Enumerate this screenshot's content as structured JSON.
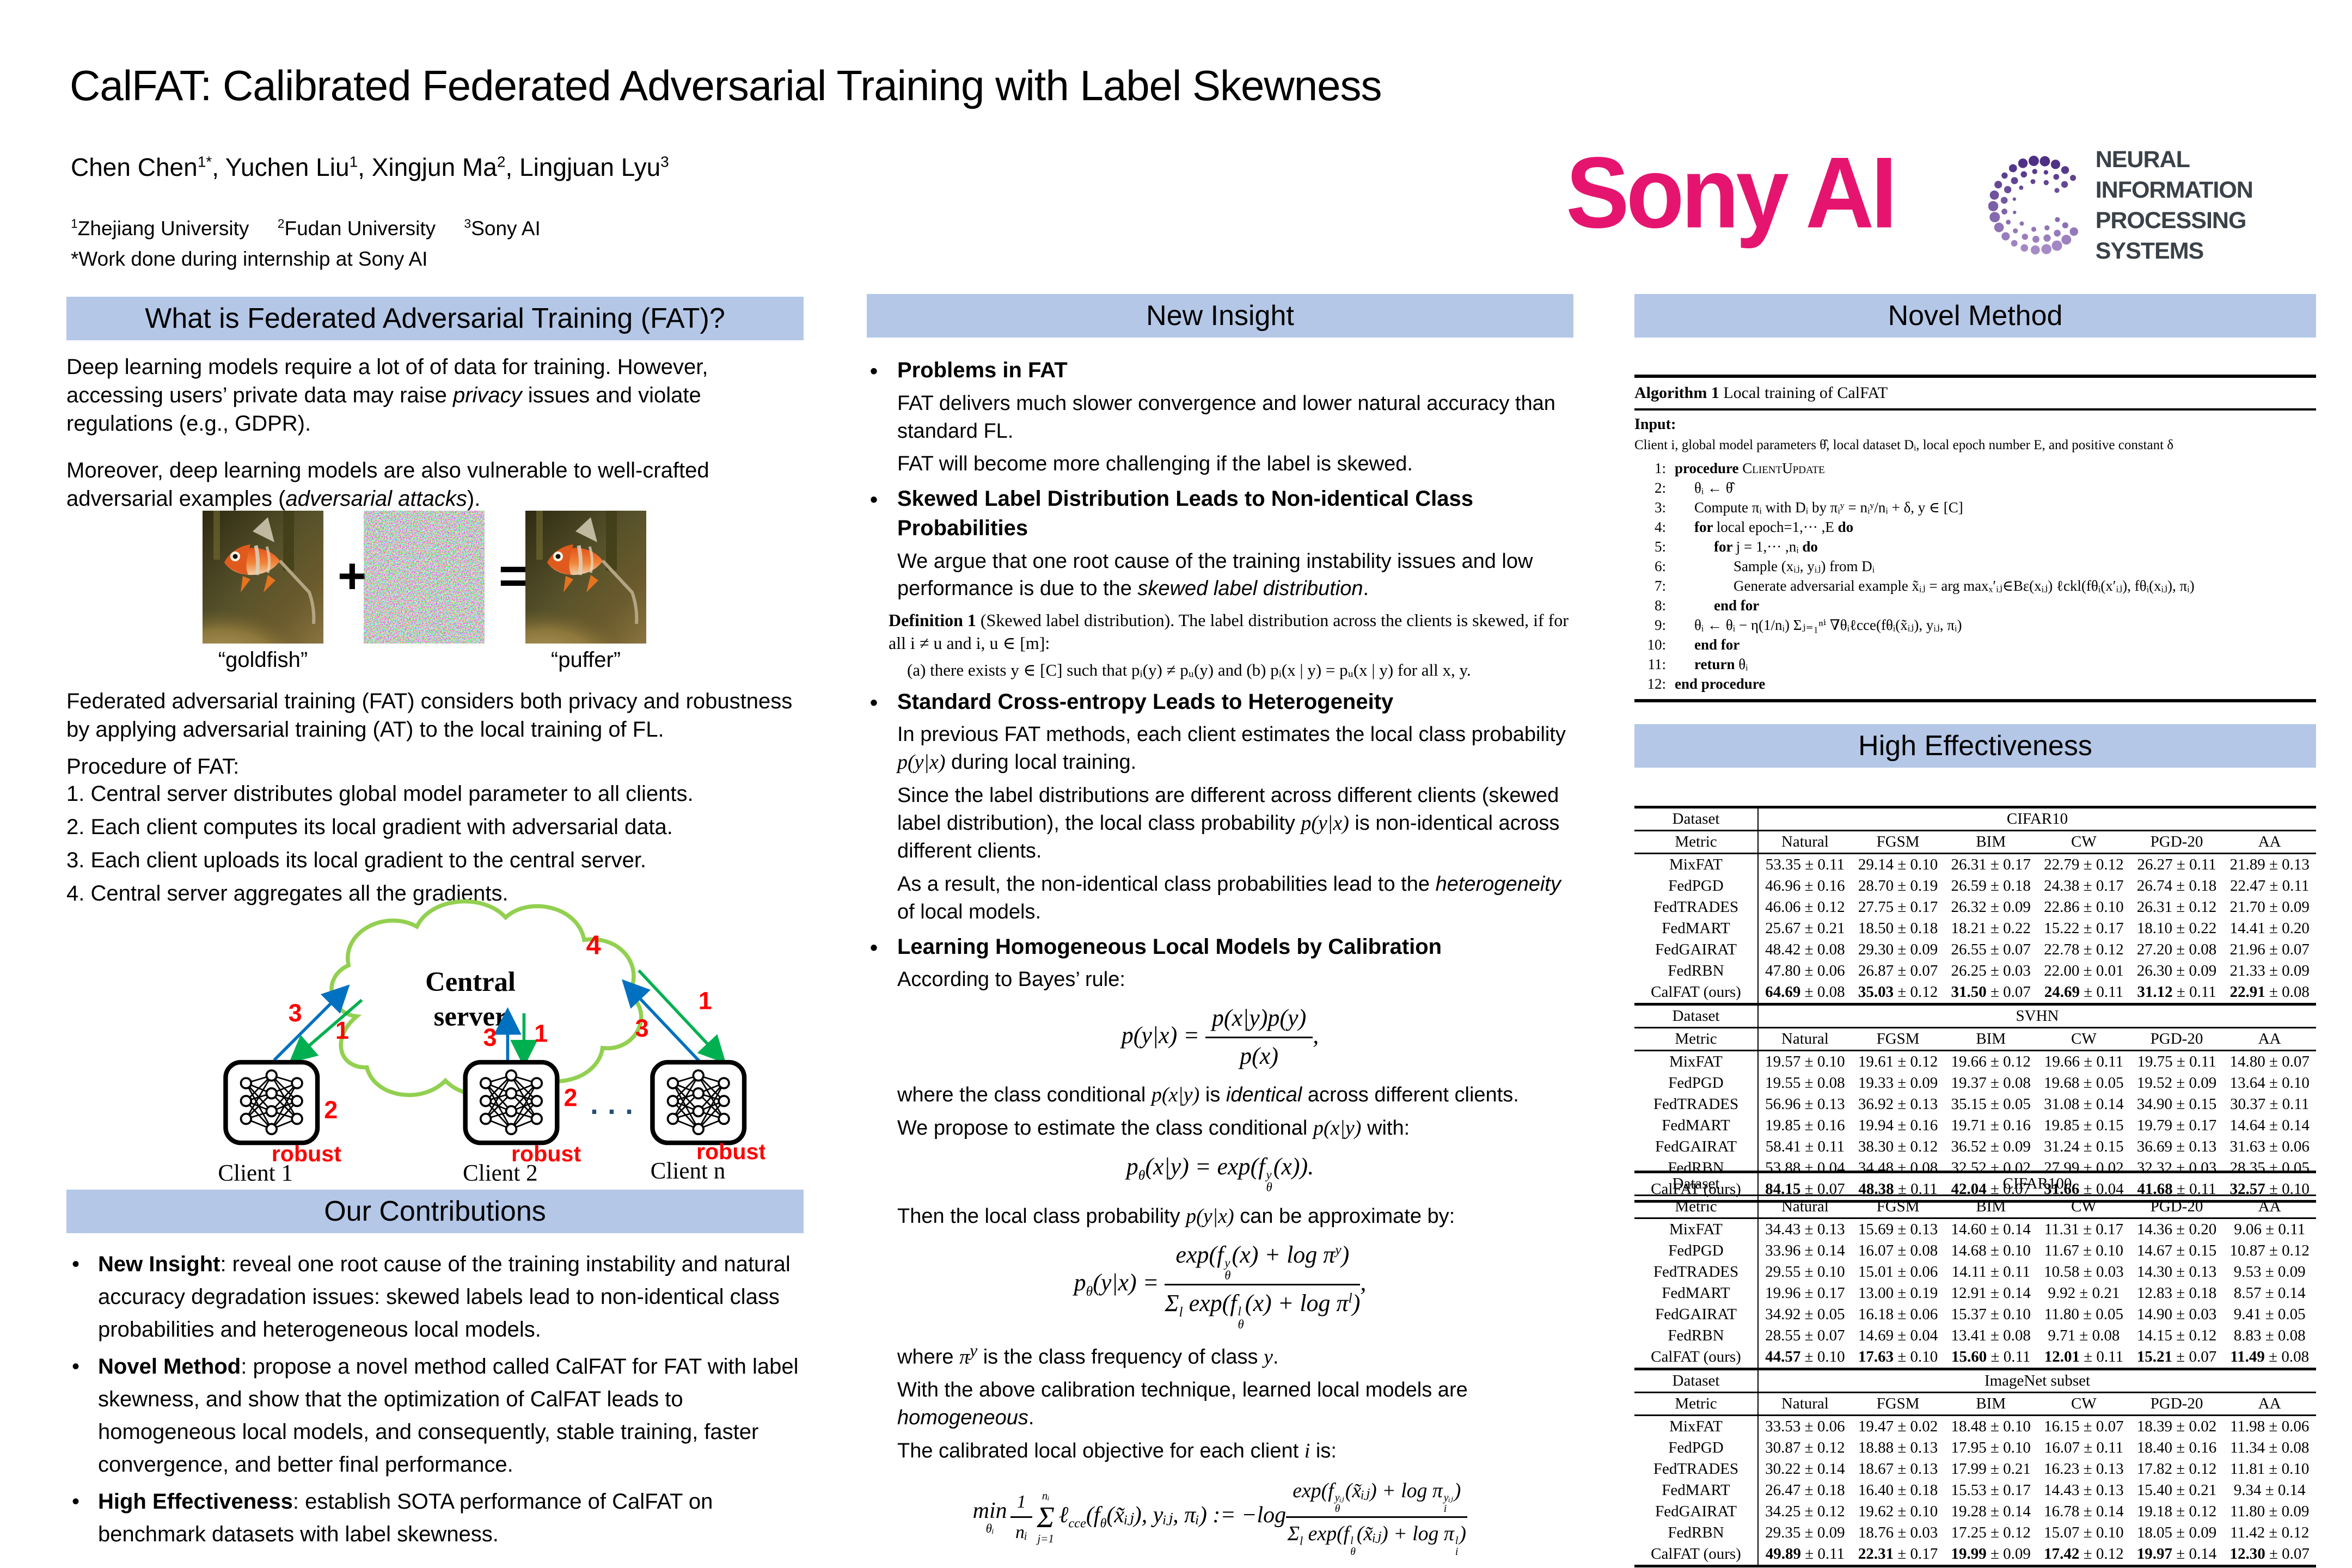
{
  "header": {
    "title": "CalFAT: Calibrated Federated Adversarial Training with Label Skewness",
    "authors": [
      {
        "name": "Chen Chen",
        "sup": "1*"
      },
      {
        "name": ", Yuchen Liu",
        "sup": "1"
      },
      {
        "name": ", Xingjun Ma",
        "sup": "2"
      },
      {
        "name": ", Lingjuan Lyu",
        "sup": "3"
      }
    ],
    "affiliations": [
      {
        "sup": "1",
        "text": "Zhejiang University"
      },
      {
        "sup": "2",
        "text": "Fudan University"
      },
      {
        "sup": "3",
        "text": "Sony AI"
      }
    ],
    "note": "*Work done during internship at Sony AI",
    "sony_logo": "Sony AI",
    "neurips_logo_line1": "NEURAL INFORMATION",
    "neurips_logo_line2": "PROCESSING SYSTEMS"
  },
  "col1": {
    "header": "What is Federated Adversarial Training (FAT)?",
    "p1a": "Deep learning models require a lot of of data for training. However, accessing users’ private data may raise ",
    "p1em": "privacy",
    "p1b": " issues and violate regulations (e.g., GDPR).",
    "p2a": "Moreover, deep learning models are also vulnerable to well-crafted adversarial examples (",
    "p2em": "adversarial attacks",
    "p2b": ").",
    "plus": "+",
    "equals": "=",
    "cap_goldfish": "“goldfish”",
    "cap_puffer": "“puffer”",
    "p3": "Federated adversarial training (FAT) considers both privacy and robustness by applying adversarial training (AT) to the local training of FL.",
    "proc_title": "Procedure of FAT:",
    "steps": [
      "1. Central server distributes global model parameter to all clients.",
      "2. Each client computes its local gradient with adversarial data.",
      "3. Each client uploads its local gradient to the central server.",
      "4. Central server aggregates all the gradients."
    ],
    "diagram": {
      "server1": "Central",
      "server2": "server",
      "n4": "4",
      "n3a": "3",
      "n1a": "1",
      "n3b": "3",
      "n1b": "1",
      "n3c": "3",
      "n1c": "1",
      "n2a": "2",
      "n2b": "2",
      "dots": "· · ·",
      "robust1": "robust",
      "robust2": "robust",
      "robust3": "robust",
      "client1": "Client 1",
      "client2": "Client 2",
      "clientn": "Client n"
    },
    "contrib_header": "Our Contributions",
    "contribs": [
      {
        "b": "New Insight",
        "t": ": reveal one root cause of the training instability and natural accuracy degradation issues: skewed labels lead to non-identical class probabilities and heterogeneous local models."
      },
      {
        "b": "Novel Method",
        "t": ": propose a novel method called CalFAT for FAT with label skewness, and show that the optimization of CalFAT leads to homogeneous local models, and consequently, stable training, faster convergence, and better final performance."
      },
      {
        "b": "High Effectiveness",
        "t": ": establish SOTA performance of CalFAT on benchmark datasets with label skewness."
      }
    ]
  },
  "col2": {
    "header": "New Insight",
    "b1_title": "Problems in FAT",
    "b1_l1": "FAT delivers much slower convergence and lower natural accuracy than standard FL.",
    "b1_l2": "FAT will become more challenging if the label is skewed.",
    "b2_title": "Skewed Label Distribution Leads to Non-identical Class Probabilities",
    "b2_a": "We argue that one root cause of the training instability issues and low performance is due to the ",
    "b2_em": "skewed label distribution",
    "b2_b": ".",
    "def_b": "Definition 1",
    "def_rest": " (Skewed label distribution).  The label distribution across the clients is skewed, if for all i ≠ u and i, u ∈ [m]:",
    "def_cond": "(a) there exists y ∈ [C] such that pᵢ(y) ≠ pᵤ(y)  and  (b) pᵢ(x | y) = pᵤ(x | y) for all x, y.",
    "b3_title": "Standard Cross-entropy Leads to Heterogeneity",
    "b3_l1a": "In previous FAT methods, each client estimates the local class probability ",
    "b3_l1m": "p(y|x)",
    "b3_l1b": " during local training.",
    "b3_l2a": "Since the label distributions are different across different clients (skewed label distribution), the local class probability ",
    "b3_l2m": "p(y|x)",
    "b3_l2b": " is non-identical across different clients.",
    "b3_l3a": "As a result, the non-identical class probabilities lead to the ",
    "b3_l3em": "heterogeneity",
    "b3_l3b": " of local models.",
    "b4_title": "Learning Homogeneous Local Models by Calibration",
    "b4_sub": "According to Bayes’ rule:",
    "f1": {
      "lhs": "p(y|x) = ",
      "num": "p(x|y)p(y)",
      "den": "p(x)",
      "tail": ","
    },
    "t1a": "where the class conditional ",
    "t1m": "p(x|y)",
    "t1b": " is ",
    "t1em": "identical",
    "t1c": " across different clients.",
    "t2a": "We propose to estimate the class conditional ",
    "t2m": "p(x|y)",
    "t2b": " with:",
    "f2": {
      "p": "p",
      "psub": "θ",
      "eq": "(x|y) = exp",
      "open": "(",
      "f": "f",
      "fsup": "y",
      "fsub": "θ",
      "arg": "(x)",
      "close": ")."
    },
    "t3": "Then the local class probability ",
    "t3m": "p(y|x)",
    "t3b": " can be approximate by:",
    "f3": {
      "p": "p",
      "psub": "θ",
      "eq": "(y|x) = ",
      "n1": "exp(f",
      "nsup": "y",
      "nsub": "θ",
      "n2": "(x) + log π",
      "n3": "y",
      "n4": ")",
      "d1": "Σ",
      "d2": "l",
      "d3": " exp(f",
      "dsup": "l",
      "dsub": "θ",
      "d4": "(x) + log π",
      "d5": "l",
      "d6": ")",
      "tail": ","
    },
    "t4a": "where ",
    "t4m": "π",
    "t4sup": "y",
    "t4b": " is the class frequency of class ",
    "t4m2": "y",
    "t4c": ".",
    "t5a": "With the above calibration technique, learned local models are ",
    "t5em": "homogeneous",
    "t5b": ".",
    "t6a": "The calibrated local objective for each client ",
    "t6m": "i",
    "t6b": " is:",
    "f4": {
      "min": "min",
      "minsub": "θᵢ",
      "f1n": "1",
      "f1d": "nᵢ",
      "sumtop": "nᵢ",
      "sumsym": "Σ",
      "sumbot": "j=1",
      "b1": "ℓ",
      "b1s": "cce",
      "b2": "(f",
      "b2s": "θ",
      "b3": "(x̃ᵢⱼ), yᵢⱼ, πᵢ) := −log",
      "na": "exp(f",
      "nasup": "yᵢⱼ",
      "nasub": "θ",
      "nb": "(x̃ᵢⱼ) + log π",
      "nbsup": "yᵢⱼ",
      "nbsub": "i",
      "nc": ")",
      "da": "Σ",
      "das": "l",
      "db": " exp(f",
      "dbsup": "l",
      "dbsub": "θ",
      "dc": "(x̃ᵢⱼ) + log π",
      "dcsup": "l",
      "dcsub": "i",
      "dd": ")"
    }
  },
  "col3": {
    "header": "Novel Method",
    "he_header": "High Effectiveness",
    "algo": {
      "title_b": "Algorithm 1",
      "title": " Local training of CalFAT",
      "input_label": "Input:",
      "input": "Client i, global model parameters θ̂, local dataset Dᵢ, local epoch number E, and positive constant δ",
      "lines": [
        {
          "n": "1:",
          "i": 0,
          "s": [
            {
              "b": 1,
              "t": "procedure "
            },
            {
              "sc": 1,
              "t": "ClientUpdate"
            }
          ]
        },
        {
          "n": "2:",
          "i": 1,
          "s": [
            {
              "t": "θᵢ ← θ̂"
            }
          ]
        },
        {
          "n": "3:",
          "i": 1,
          "s": [
            {
              "t": "Compute πᵢ with Dᵢ by πᵢʸ = nᵢʸ/nᵢ + δ, y ∈ [C]"
            }
          ]
        },
        {
          "n": "4:",
          "i": 1,
          "s": [
            {
              "b": 1,
              "t": "for "
            },
            {
              "t": "local epoch=1,··· ,E "
            },
            {
              "b": 1,
              "t": "do"
            }
          ]
        },
        {
          "n": "5:",
          "i": 2,
          "s": [
            {
              "b": 1,
              "t": "for "
            },
            {
              "t": "j = 1,··· ,nᵢ "
            },
            {
              "b": 1,
              "t": "do"
            }
          ]
        },
        {
          "n": "6:",
          "i": 3,
          "s": [
            {
              "t": "Sample (xᵢⱼ, yᵢⱼ) from Dᵢ"
            }
          ]
        },
        {
          "n": "7:",
          "i": 3,
          "s": [
            {
              "t": "Generate adversarial example x̃ᵢⱼ = arg maxₓ′ᵢⱼ∈Bε(xᵢⱼ) ℓckl(fθᵢ(x′ᵢⱼ), fθᵢ(xᵢⱼ), πᵢ)"
            }
          ]
        },
        {
          "n": "8:",
          "i": 2,
          "s": [
            {
              "b": 1,
              "t": "end for"
            }
          ]
        },
        {
          "n": "9:",
          "i": 1,
          "s": [
            {
              "t": "θᵢ ← θᵢ − η(1/nᵢ) Σⱼ₌₁ⁿⁱ ∇θᵢℓcce(fθᵢ(x̃ᵢⱼ), yᵢⱼ, πᵢ)"
            }
          ]
        },
        {
          "n": "10:",
          "i": 1,
          "s": [
            {
              "b": 1,
              "t": "end for"
            }
          ]
        },
        {
          "n": "11:",
          "i": 1,
          "s": [
            {
              "b": 1,
              "t": "return "
            },
            {
              "t": "θᵢ"
            }
          ]
        },
        {
          "n": "12:",
          "i": 0,
          "s": [
            {
              "b": 1,
              "t": "end procedure"
            }
          ]
        }
      ]
    },
    "tables": [
      {
        "label_dataset": "Dataset",
        "label_metric": "Metric",
        "dataset": "CIFAR10",
        "metrics": [
          "Natural",
          "FGSM",
          "BIM",
          "CW",
          "PGD-20",
          "AA"
        ],
        "rows": [
          {
            "method": "MixFAT",
            "cells": [
              "53.35 ± 0.11",
              "29.14 ± 0.10",
              "26.31 ± 0.17",
              "22.79 ± 0.12",
              "26.27 ± 0.11",
              "21.89 ± 0.13"
            ]
          },
          {
            "method": "FedPGD",
            "cells": [
              "46.96 ± 0.16",
              "28.70 ± 0.19",
              "26.59 ± 0.18",
              "24.38 ± 0.17",
              "26.74 ± 0.18",
              "22.47 ± 0.11"
            ]
          },
          {
            "method": "FedTRADES",
            "cells": [
              "46.06 ± 0.12",
              "27.75 ± 0.17",
              "26.32 ± 0.09",
              "22.86 ± 0.10",
              "26.31 ± 0.12",
              "21.70 ± 0.09"
            ]
          },
          {
            "method": "FedMART",
            "cells": [
              "25.67 ± 0.21",
              "18.50 ± 0.18",
              "18.21 ± 0.22",
              "15.22 ± 0.17",
              "18.10 ± 0.22",
              "14.41 ± 0.20"
            ]
          },
          {
            "method": "FedGAIRAT",
            "cells": [
              "48.42 ± 0.08",
              "29.30 ± 0.09",
              "26.55 ± 0.07",
              "22.78 ± 0.12",
              "27.20 ± 0.08",
              "21.96 ± 0.07"
            ]
          },
          {
            "method": "FedRBN",
            "cells": [
              "47.80 ± 0.06",
              "26.87 ± 0.07",
              "26.25 ± 0.03",
              "22.00 ± 0.01",
              "26.30 ± 0.09",
              "21.33 ± 0.09"
            ]
          },
          {
            "method": "CalFAT (ours)",
            "bold": true,
            "cells": [
              "64.69 ± 0.08",
              "35.03 ± 0.12",
              "31.50 ± 0.07",
              "24.69 ± 0.11",
              "31.12 ± 0.11",
              "22.91 ± 0.08"
            ]
          }
        ]
      },
      {
        "label_dataset": "Dataset",
        "label_metric": "Metric",
        "dataset": "SVHN",
        "metrics": [
          "Natural",
          "FGSM",
          "BIM",
          "CW",
          "PGD-20",
          "AA"
        ],
        "rows": [
          {
            "method": "MixFAT",
            "cells": [
              "19.57 ± 0.10",
              "19.61 ± 0.12",
              "19.66 ± 0.12",
              "19.66 ± 0.11",
              "19.75 ± 0.11",
              "14.80 ± 0.07"
            ]
          },
          {
            "method": "FedPGD",
            "cells": [
              "19.55 ± 0.08",
              "19.33 ± 0.09",
              "19.37 ± 0.08",
              "19.68 ± 0.05",
              "19.52 ± 0.09",
              "13.64 ± 0.10"
            ]
          },
          {
            "method": "FedTRADES",
            "cells": [
              "56.96 ± 0.13",
              "36.92 ± 0.13",
              "35.15 ± 0.05",
              "31.08 ± 0.14",
              "34.90 ± 0.15",
              "30.37 ± 0.11"
            ]
          },
          {
            "method": "FedMART",
            "cells": [
              "19.85 ± 0.16",
              "19.94 ± 0.16",
              "19.71 ± 0.16",
              "19.85 ± 0.15",
              "19.79 ± 0.17",
              "14.64 ± 0.14"
            ]
          },
          {
            "method": "FedGAIRAT",
            "cells": [
              "58.41 ± 0.11",
              "38.30 ± 0.12",
              "36.52 ± 0.09",
              "31.24 ± 0.15",
              "36.69 ± 0.13",
              "31.63 ± 0.06"
            ]
          },
          {
            "method": "FedRBN",
            "cells": [
              "53.88 ± 0.04",
              "34.48 ± 0.08",
              "32.52 ± 0.02",
              "27.99 ± 0.02",
              "32.32 ± 0.03",
              "28.35 ± 0.05"
            ]
          },
          {
            "method": "CalFAT (ours)",
            "bold": true,
            "cells": [
              "84.15 ± 0.07",
              "48.38 ± 0.11",
              "42.04 ± 0.07",
              "31.66 ± 0.04",
              "41.68 ± 0.11",
              "32.57 ± 0.10"
            ]
          }
        ]
      },
      {
        "label_dataset": "Dataset",
        "label_metric": "Metric",
        "dataset": "CIFAR100",
        "metrics": [
          "Natural",
          "FGSM",
          "BIM",
          "CW",
          "PGD-20",
          "AA"
        ],
        "rows": [
          {
            "method": "MixFAT",
            "cells": [
              "34.43 ± 0.13",
              "15.69 ± 0.13",
              "14.60 ± 0.14",
              "11.31 ± 0.17",
              "14.36 ± 0.20",
              "9.06 ± 0.11"
            ]
          },
          {
            "method": "FedPGD",
            "cells": [
              "33.96 ± 0.14",
              "16.07 ± 0.08",
              "14.68 ± 0.10",
              "11.67 ± 0.10",
              "14.67 ± 0.15",
              "10.87 ± 0.12"
            ]
          },
          {
            "method": "FedTRADES",
            "cells": [
              "29.55 ± 0.10",
              "15.01 ± 0.06",
              "14.11 ± 0.11",
              "10.58 ± 0.03",
              "14.30 ± 0.13",
              "9.53 ± 0.09"
            ]
          },
          {
            "method": "FedMART",
            "cells": [
              "19.96 ± 0.17",
              "13.00 ± 0.19",
              "12.91 ± 0.14",
              "9.92 ± 0.21",
              "12.83 ± 0.18",
              "8.57 ± 0.14"
            ]
          },
          {
            "method": "FedGAIRAT",
            "cells": [
              "34.92 ± 0.05",
              "16.18 ± 0.06",
              "15.37 ± 0.10",
              "11.80 ± 0.05",
              "14.90 ± 0.03",
              "9.41 ± 0.05"
            ]
          },
          {
            "method": "FedRBN",
            "cells": [
              "28.55 ± 0.07",
              "14.69 ± 0.04",
              "13.41 ± 0.08",
              "9.71 ± 0.08",
              "14.15 ± 0.12",
              "8.83 ± 0.08"
            ]
          },
          {
            "method": "CalFAT (ours)",
            "bold": true,
            "cells": [
              "44.57 ± 0.10",
              "17.63 ± 0.10",
              "15.60 ± 0.11",
              "12.01 ± 0.11",
              "15.21 ± 0.07",
              "11.49 ± 0.08"
            ]
          }
        ]
      },
      {
        "label_dataset": "Dataset",
        "label_metric": "Metric",
        "dataset": "ImageNet subset",
        "metrics": [
          "Natural",
          "FGSM",
          "BIM",
          "CW",
          "PGD-20",
          "AA"
        ],
        "rows": [
          {
            "method": "MixFAT",
            "cells": [
              "33.53 ± 0.06",
              "19.47 ± 0.02",
              "18.48 ± 0.10",
              "16.15 ± 0.07",
              "18.39 ± 0.02",
              "11.98 ± 0.06"
            ]
          },
          {
            "method": "FedPGD",
            "cells": [
              "30.87 ± 0.12",
              "18.88 ± 0.13",
              "17.95 ± 0.10",
              "16.07 ± 0.11",
              "18.40 ± 0.16",
              "11.34 ± 0.08"
            ]
          },
          {
            "method": "FedTRADES",
            "cells": [
              "30.22 ± 0.14",
              "18.67 ± 0.13",
              "17.99 ± 0.21",
              "16.23 ± 0.13",
              "17.82 ± 0.12",
              "11.81 ± 0.10"
            ]
          },
          {
            "method": "FedMART",
            "cells": [
              "26.47 ± 0.18",
              "16.40 ± 0.18",
              "15.53 ± 0.17",
              "14.43 ± 0.13",
              "15.40 ± 0.21",
              "9.34 ± 0.14"
            ]
          },
          {
            "method": "FedGAIRAT",
            "cells": [
              "34.25 ± 0.12",
              "19.62 ± 0.10",
              "19.28 ± 0.14",
              "16.78 ± 0.14",
              "19.18 ± 0.12",
              "11.80 ± 0.09"
            ]
          },
          {
            "method": "FedRBN",
            "cells": [
              "29.35 ± 0.09",
              "18.76 ± 0.03",
              "17.25 ± 0.12",
              "15.07 ± 0.10",
              "18.05 ± 0.09",
              "11.42 ± 0.12"
            ]
          },
          {
            "method": "CalFAT (ours)",
            "bold": true,
            "cells": [
              "49.89 ± 0.11",
              "22.31 ± 0.17",
              "19.99 ± 0.09",
              "17.42 ± 0.12",
              "19.97 ± 0.14",
              "12.30 ± 0.07"
            ]
          }
        ]
      }
    ]
  }
}
